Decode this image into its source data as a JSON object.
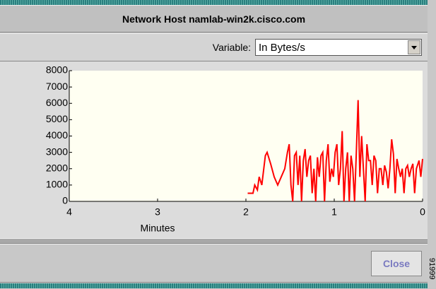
{
  "window": {
    "title": "Network Host namlab-win2k.cisco.com",
    "variable_label": "Variable:",
    "variable_value": "In Bytes/s",
    "close_button": "Close",
    "figure_id": "91999"
  },
  "chart_data": {
    "type": "line",
    "xlabel": "Minutes",
    "color": "#ff0000",
    "grid": false,
    "xlim": [
      4,
      0
    ],
    "xticks": [
      4,
      3,
      2,
      1,
      0
    ],
    "ylim": [
      0,
      8000
    ],
    "yticks": [
      0,
      1000,
      2000,
      3000,
      4000,
      5000,
      6000,
      7000,
      8000
    ],
    "x": [
      1.98,
      1.92,
      1.9,
      1.87,
      1.85,
      1.82,
      1.78,
      1.76,
      1.72,
      1.68,
      1.64,
      1.6,
      1.56,
      1.53,
      1.51,
      1.49,
      1.47,
      1.45,
      1.43,
      1.41,
      1.39,
      1.37,
      1.35,
      1.33,
      1.31,
      1.29,
      1.27,
      1.25,
      1.23,
      1.21,
      1.19,
      1.17,
      1.15,
      1.13,
      1.11,
      1.09,
      1.07,
      1.05,
      1.03,
      1.01,
      0.99,
      0.97,
      0.95,
      0.93,
      0.91,
      0.89,
      0.87,
      0.85,
      0.83,
      0.81,
      0.79,
      0.77,
      0.75,
      0.73,
      0.71,
      0.69,
      0.67,
      0.65,
      0.63,
      0.61,
      0.59,
      0.57,
      0.55,
      0.53,
      0.51,
      0.49,
      0.47,
      0.45,
      0.43,
      0.41,
      0.39,
      0.37,
      0.35,
      0.33,
      0.31,
      0.29,
      0.27,
      0.25,
      0.23,
      0.21,
      0.19,
      0.17,
      0.15,
      0.13,
      0.11,
      0.09,
      0.07,
      0.04,
      0.02,
      0
    ],
    "values": [
      500,
      500,
      1000,
      700,
      1500,
      1000,
      2800,
      3000,
      2300,
      1500,
      1000,
      1500,
      2000,
      3000,
      3500,
      1000,
      0,
      2800,
      3000,
      1000,
      2800,
      0,
      2500,
      3200,
      1500,
      2500,
      2800,
      500,
      2000,
      0,
      2700,
      1500,
      2800,
      3000,
      0,
      2500,
      3500,
      1200,
      2000,
      1500,
      3000,
      3500,
      1000,
      2000,
      4300,
      0,
      2000,
      3000,
      0,
      2800,
      2000,
      0,
      3000,
      6200,
      1500,
      4000,
      2000,
      0,
      3500,
      2500,
      2500,
      1000,
      2800,
      2500,
      500,
      2000,
      2000,
      1000,
      2200,
      1800,
      800,
      2000,
      3800,
      2900,
      500,
      2600,
      2000,
      1500,
      2000,
      500,
      2000,
      2200,
      1500,
      2000,
      2300,
      500,
      2000,
      2500,
      1500,
      2600
    ]
  }
}
